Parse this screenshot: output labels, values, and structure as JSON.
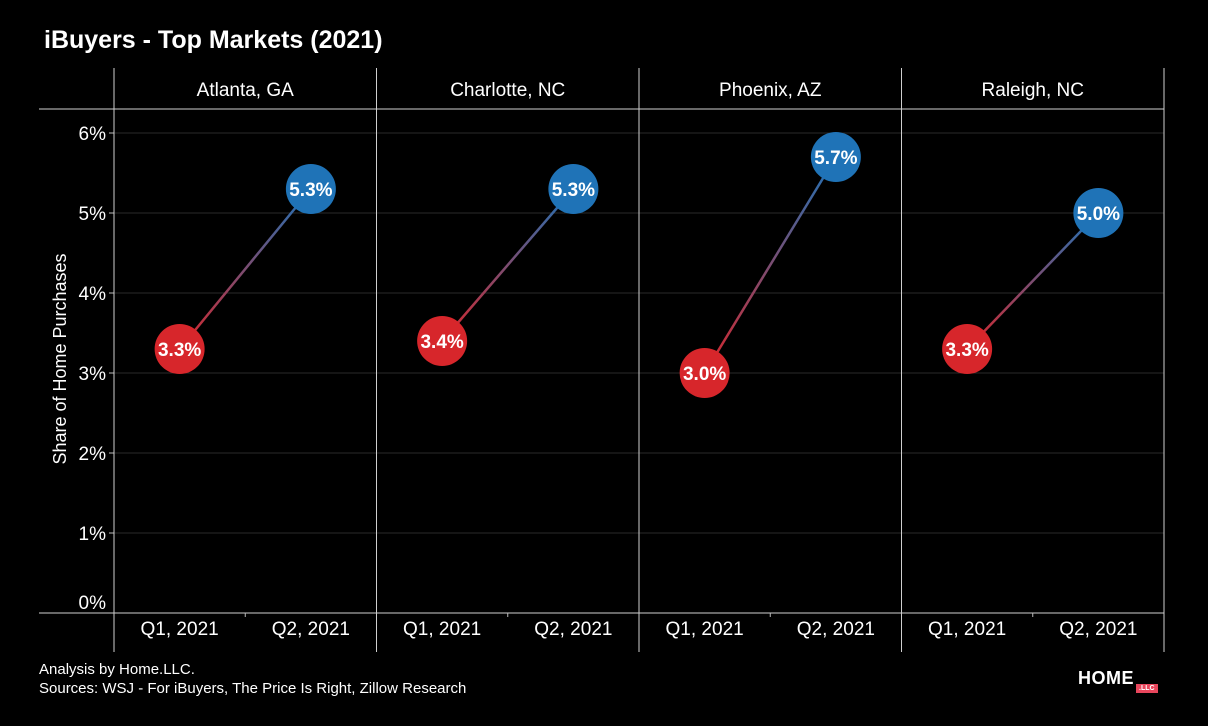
{
  "title": "iBuyers - Top Markets (2021)",
  "footer": {
    "line1": "Analysis by Home.LLC.",
    "line2": "Sources: WSJ - For iBuyers, The Price Is Right, Zillow Research"
  },
  "logo": {
    "main": "HOME",
    "suffix": ".LLC"
  },
  "colors": {
    "q1": "#d7262b",
    "q2": "#1f73b7",
    "background": "#000000",
    "text": "#ffffff"
  },
  "chart_data": {
    "type": "line",
    "ylabel": "Share of Home Purchases",
    "ylim": [
      0,
      6
    ],
    "yticks": [
      "0%",
      "1%",
      "2%",
      "3%",
      "4%",
      "5%",
      "6%"
    ],
    "categories": [
      "Q1, 2021",
      "Q2, 2021"
    ],
    "panels": [
      {
        "name": "Atlanta, GA",
        "values": [
          3.3,
          5.3
        ],
        "labels": [
          "3.3%",
          "5.3%"
        ]
      },
      {
        "name": "Charlotte, NC",
        "values": [
          3.4,
          5.3
        ],
        "labels": [
          "3.4%",
          "5.3%"
        ]
      },
      {
        "name": "Phoenix, AZ",
        "values": [
          3.0,
          5.7
        ],
        "labels": [
          "3.0%",
          "5.7%"
        ]
      },
      {
        "name": "Raleigh, NC",
        "values": [
          3.3,
          5.0
        ],
        "labels": [
          "3.3%",
          "5.0%"
        ]
      }
    ]
  }
}
